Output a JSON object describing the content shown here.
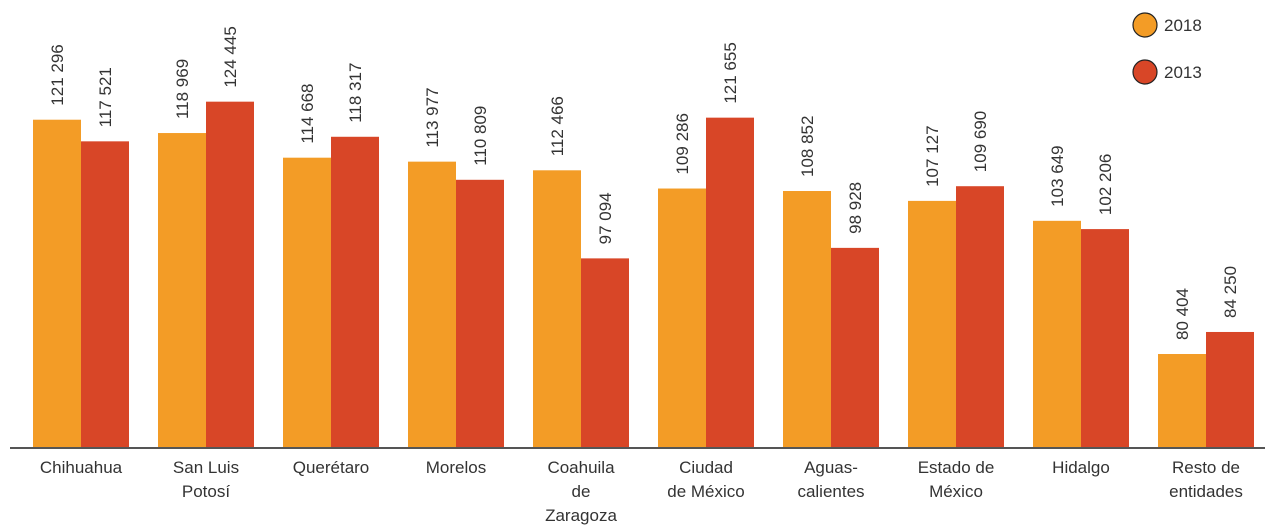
{
  "chart_data": {
    "type": "bar",
    "categories": [
      "Chihuahua",
      "San Luis Potosí",
      "Querétaro",
      "Morelos",
      "Coahuila de Zaragoza",
      "Ciudad de México",
      "Aguas-calientes",
      "Estado de México",
      "Hidalgo",
      "Resto de entidades"
    ],
    "category_lines": [
      [
        "Chihuahua"
      ],
      [
        "San Luis",
        "Potosí"
      ],
      [
        "Querétaro"
      ],
      [
        "Morelos"
      ],
      [
        "Coahuila",
        "de",
        "Zaragoza"
      ],
      [
        "Ciudad",
        "de México"
      ],
      [
        "Aguas-",
        "calientes"
      ],
      [
        "Estado de",
        "México"
      ],
      [
        "Hidalgo"
      ],
      [
        "Resto de",
        "entidades"
      ]
    ],
    "series": [
      {
        "name": "2018",
        "color": "#F39C26",
        "values": [
          121296,
          118969,
          114668,
          113977,
          112466,
          109286,
          108852,
          107127,
          103649,
          80404
        ],
        "labels": [
          "121 296",
          "118 969",
          "114 668",
          "113 977",
          "112 466",
          "109 286",
          "108 852",
          "107 127",
          "103 649",
          "80 404"
        ]
      },
      {
        "name": "2013",
        "color": "#D84627",
        "values": [
          117521,
          124445,
          118317,
          110809,
          97094,
          121655,
          98928,
          109690,
          102206,
          84250
        ],
        "labels": [
          "117 521",
          "124 445",
          "118 317",
          "110 809",
          "97 094",
          "121 655",
          "98 928",
          "109 690",
          "102 206",
          "84 250"
        ]
      }
    ],
    "ylim": [
      64000,
      138000
    ],
    "grid": false,
    "legend_position": "top-right",
    "axis_color": "#555555",
    "text_color": "#333333"
  }
}
